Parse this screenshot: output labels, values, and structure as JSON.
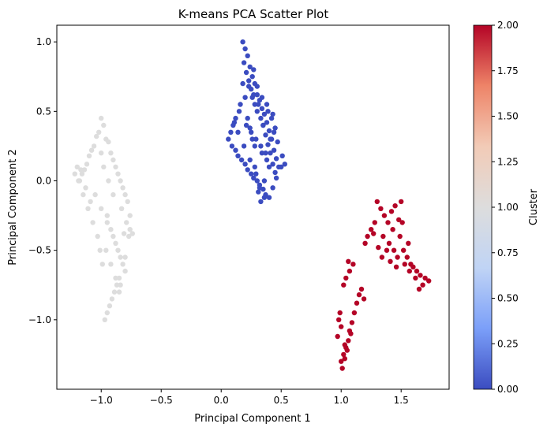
{
  "chart_data": {
    "type": "scatter",
    "title": "K-means PCA Scatter Plot",
    "xlabel": "Principal Component 1",
    "ylabel": "Principal Component 2",
    "xlim": [
      -1.37,
      1.9
    ],
    "ylim": [
      -1.5,
      1.12
    ],
    "xticks": [
      -1.0,
      -0.5,
      0.0,
      0.5,
      1.0,
      1.5
    ],
    "xtick_labels": [
      "−1.0",
      "−0.5",
      "0.0",
      "0.5",
      "1.0",
      "1.5"
    ],
    "yticks": [
      1.0,
      0.5,
      0.0,
      -0.5,
      -1.0
    ],
    "ytick_labels": [
      "1.0",
      "0.5",
      "0.0",
      "−0.5",
      "−1.0"
    ],
    "grid": false,
    "colorbar": {
      "label": "Cluster",
      "range": [
        0.0,
        2.0
      ],
      "ticks": [
        0.0,
        0.25,
        0.5,
        0.75,
        1.0,
        1.25,
        1.5,
        1.75,
        2.0
      ],
      "tick_labels": [
        "0.00",
        "0.25",
        "0.50",
        "0.75",
        "1.00",
        "1.25",
        "1.50",
        "1.75",
        "2.00"
      ],
      "colormap": "coolwarm",
      "colormap_stops": [
        "#3b4cc0",
        "#7b9ff9",
        "#c0d4f5",
        "#dddddd",
        "#f2cbb7",
        "#ee8468",
        "#b40426"
      ]
    },
    "series": [
      {
        "cluster": 0,
        "color": "#3b4cc0",
        "x": [
          0.18,
          0.2,
          0.22,
          0.19,
          0.24,
          0.21,
          0.27,
          0.23,
          0.28,
          0.25,
          0.3,
          0.26,
          0.32,
          0.28,
          0.34,
          0.3,
          0.36,
          0.33,
          0.38,
          0.35,
          0.4,
          0.37,
          0.42,
          0.39,
          0.44,
          0.41,
          0.46,
          0.43,
          0.48,
          0.45,
          0.5,
          0.15,
          0.12,
          0.1,
          0.08,
          0.06,
          0.09,
          0.12,
          0.14,
          0.17,
          0.2,
          0.22,
          0.25,
          0.27,
          0.3,
          0.32,
          0.35,
          0.37,
          0.4,
          0.43,
          0.46,
          0.33,
          0.36,
          0.31,
          0.29,
          0.26,
          0.24,
          0.22,
          0.28,
          0.34,
          0.38,
          0.41,
          0.44,
          0.47,
          0.51,
          0.53,
          0.31,
          0.27,
          0.35,
          0.39,
          0.42,
          0.45,
          0.2,
          0.23,
          0.18,
          0.16,
          0.21,
          0.25,
          0.29,
          0.33,
          0.37,
          0.4,
          0.36,
          0.32,
          0.28,
          0.24,
          0.19,
          0.14,
          0.11,
          0.26,
          0.3,
          0.34,
          0.38,
          0.43
        ],
        "y": [
          1.0,
          0.95,
          0.9,
          0.85,
          0.82,
          0.78,
          0.8,
          0.72,
          0.7,
          0.66,
          0.62,
          0.6,
          0.58,
          0.55,
          0.52,
          0.5,
          0.48,
          0.45,
          0.42,
          0.4,
          0.36,
          0.33,
          0.3,
          0.26,
          0.22,
          0.2,
          0.16,
          0.12,
          0.1,
          0.06,
          0.1,
          0.5,
          0.45,
          0.4,
          0.35,
          0.3,
          0.25,
          0.22,
          0.18,
          0.15,
          0.12,
          0.08,
          0.05,
          0.02,
          0.0,
          -0.03,
          -0.06,
          -0.1,
          -0.12,
          -0.05,
          0.02,
          -0.15,
          -0.12,
          -0.08,
          0.05,
          0.3,
          0.38,
          0.45,
          0.25,
          0.2,
          0.15,
          0.3,
          0.35,
          0.28,
          0.18,
          0.12,
          0.55,
          0.62,
          0.4,
          0.5,
          0.45,
          0.38,
          0.6,
          0.68,
          0.7,
          0.55,
          0.4,
          0.35,
          0.3,
          0.25,
          0.2,
          0.1,
          0.0,
          -0.05,
          0.1,
          0.15,
          0.25,
          0.35,
          0.42,
          0.75,
          0.68,
          0.6,
          0.55,
          0.48
        ]
      },
      {
        "cluster": 1,
        "color": "#dddddd",
        "x": [
          -1.0,
          -0.98,
          -1.02,
          -0.96,
          -1.04,
          -0.94,
          -1.06,
          -0.92,
          -1.08,
          -0.9,
          -1.1,
          -0.88,
          -1.12,
          -0.86,
          -1.14,
          -0.84,
          -1.16,
          -0.82,
          -1.18,
          -0.8,
          -1.2,
          -0.78,
          -1.22,
          -0.76,
          -1.05,
          -1.0,
          -0.95,
          -0.92,
          -0.9,
          -0.88,
          -0.86,
          -0.84,
          -0.82,
          -0.8,
          -0.85,
          -0.87,
          -0.89,
          -0.91,
          -0.93,
          -0.95,
          -0.97,
          -0.99,
          -1.01,
          -1.03,
          -1.07,
          -1.11,
          -1.15,
          -1.19,
          -0.83,
          -0.79,
          -0.77,
          -0.81,
          -0.9,
          -0.94,
          -0.98,
          -1.0,
          -0.96,
          -0.92,
          -0.88,
          -0.84,
          -0.8,
          -0.76,
          -0.74,
          -0.95,
          -0.85,
          -1.13,
          -1.17,
          -1.09
        ],
        "y": [
          0.45,
          0.4,
          0.35,
          0.3,
          0.32,
          0.28,
          0.25,
          0.2,
          0.22,
          0.15,
          0.18,
          0.1,
          0.12,
          0.05,
          0.08,
          0.0,
          0.05,
          -0.05,
          0.0,
          -0.1,
          0.1,
          -0.15,
          0.05,
          -0.25,
          -0.1,
          -0.2,
          -0.3,
          -0.35,
          -0.4,
          -0.45,
          -0.5,
          -0.55,
          -0.6,
          -0.65,
          -0.7,
          -0.75,
          -0.8,
          -0.85,
          -0.9,
          -0.95,
          -1.0,
          -0.6,
          -0.5,
          -0.4,
          -0.3,
          -0.2,
          -0.1,
          0.0,
          -0.2,
          -0.3,
          -0.4,
          -0.38,
          -0.1,
          0.0,
          0.1,
          0.2,
          -0.5,
          -0.6,
          -0.7,
          -0.75,
          -0.55,
          -0.35,
          -0.38,
          -0.25,
          -0.8,
          -0.05,
          0.08,
          -0.15
        ]
      },
      {
        "cluster": 2,
        "color": "#b40426",
        "x": [
          1.3,
          1.33,
          1.36,
          1.39,
          1.42,
          1.45,
          1.48,
          1.5,
          1.28,
          1.25,
          1.22,
          1.2,
          1.35,
          1.4,
          1.44,
          1.47,
          1.52,
          1.55,
          1.58,
          1.6,
          1.63,
          1.66,
          1.7,
          1.73,
          1.68,
          1.65,
          1.62,
          1.57,
          1.53,
          1.46,
          1.41,
          1.38,
          1.34,
          1.31,
          1.27,
          1.43,
          1.49,
          1.51,
          1.56,
          1.0,
          1.02,
          1.04,
          1.06,
          1.08,
          1.0,
          0.98,
          0.99,
          1.01,
          1.03,
          1.05,
          1.07,
          1.09,
          1.11,
          1.13,
          1.15,
          1.17,
          1.19,
          1.1,
          1.07,
          1.04,
          1.02,
          0.97,
          1.06,
          1.03
        ],
        "y": [
          -0.15,
          -0.2,
          -0.25,
          -0.3,
          -0.22,
          -0.18,
          -0.28,
          -0.15,
          -0.3,
          -0.35,
          -0.4,
          -0.45,
          -0.4,
          -0.45,
          -0.5,
          -0.55,
          -0.5,
          -0.55,
          -0.6,
          -0.62,
          -0.65,
          -0.68,
          -0.7,
          -0.72,
          -0.75,
          -0.78,
          -0.7,
          -0.65,
          -0.6,
          -0.62,
          -0.58,
          -0.5,
          -0.55,
          -0.48,
          -0.38,
          -0.35,
          -0.4,
          -0.3,
          -0.45,
          -1.3,
          -1.25,
          -1.2,
          -1.15,
          -1.1,
          -1.05,
          -1.0,
          -0.95,
          -1.35,
          -1.28,
          -1.22,
          -1.08,
          -1.02,
          -0.95,
          -0.88,
          -0.82,
          -0.78,
          -0.85,
          -0.6,
          -0.65,
          -0.7,
          -0.75,
          -1.12,
          -0.58,
          -1.18
        ]
      }
    ]
  }
}
